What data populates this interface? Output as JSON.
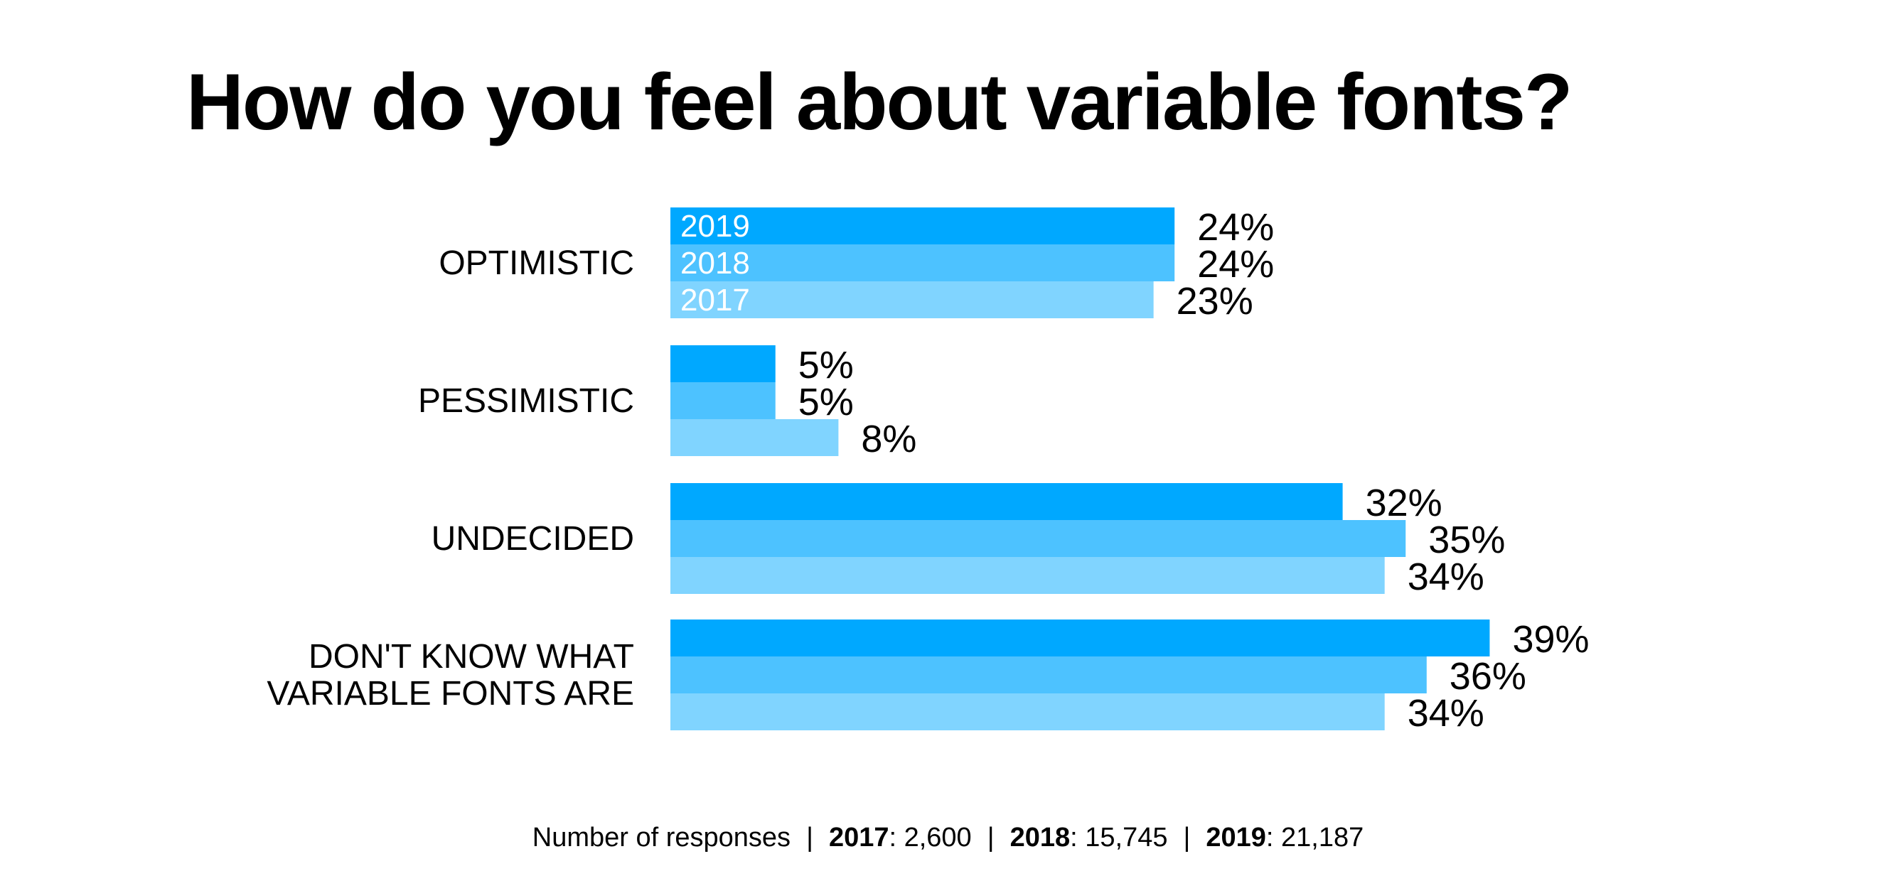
{
  "chart_data": {
    "type": "bar",
    "orientation": "horizontal",
    "title": "How do you feel about variable fonts?",
    "categories": [
      [
        "OPTIMISTIC"
      ],
      [
        "PESSIMISTIC"
      ],
      [
        "UNDECIDED"
      ],
      [
        "DON'T KNOW WHAT",
        "VARIABLE FONTS ARE"
      ]
    ],
    "series": [
      {
        "name": "2019",
        "color": "#00a8ff",
        "values": [
          24,
          5,
          32,
          39
        ],
        "labels": [
          "24%",
          "5%",
          "32%",
          "39%"
        ]
      },
      {
        "name": "2018",
        "color": "#4dc2ff",
        "values": [
          24,
          5,
          35,
          36
        ],
        "labels": [
          "24%",
          "5%",
          "35%",
          "36%"
        ]
      },
      {
        "name": "2017",
        "color": "#80d4ff",
        "values": [
          23,
          8,
          34,
          34
        ],
        "labels": [
          "23%",
          "8%",
          "34%",
          "34%"
        ]
      }
    ],
    "xlim": [
      0,
      40
    ],
    "grid": false,
    "legend": "inside-first-group"
  },
  "footer": {
    "label": "Number of responses",
    "separator": "|",
    "counts": [
      {
        "year": "2017",
        "value": ": 2,600"
      },
      {
        "year": "2018",
        "value": ": 15,745"
      },
      {
        "year": "2019",
        "value": ": 21,187"
      }
    ]
  }
}
